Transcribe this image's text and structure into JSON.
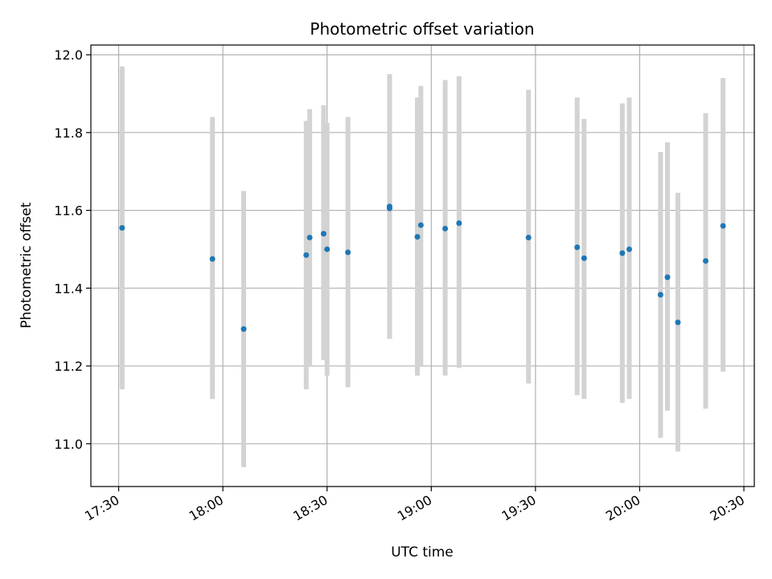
{
  "chart_data": {
    "type": "scatter",
    "title": "Photometric offset variation",
    "xlabel": "UTC time",
    "ylabel": "Photometric offset",
    "x_ticks": [
      "17:30",
      "18:00",
      "18:30",
      "19:00",
      "19:30",
      "20:00",
      "20:30"
    ],
    "x_tick_minutes": [
      1050,
      1080,
      1110,
      1140,
      1170,
      1200,
      1230
    ],
    "y_ticks": [
      "11.0",
      "11.2",
      "11.4",
      "11.6",
      "11.8",
      "12.0"
    ],
    "y_tick_values": [
      11.0,
      11.2,
      11.4,
      11.6,
      11.8,
      12.0
    ],
    "xlim": [
      "17:22",
      "20:33"
    ],
    "ylim": [
      10.89,
      12.025
    ],
    "grid": true,
    "colors": {
      "points": "#1f77b4",
      "error_bars": "#d3d3d3",
      "grid": "#b0b0b0"
    },
    "series": [
      {
        "points": [
          {
            "x": "17:31",
            "y": 11.555,
            "ylow": 11.14,
            "yhigh": 11.97
          },
          {
            "x": "17:57",
            "y": 11.475,
            "ylow": 11.115,
            "yhigh": 11.84
          },
          {
            "x": "18:06",
            "y": 11.295,
            "ylow": 10.94,
            "yhigh": 11.65
          },
          {
            "x": "18:24",
            "y": 11.485,
            "ylow": 11.14,
            "yhigh": 11.83
          },
          {
            "x": "18:25",
            "y": 11.53,
            "ylow": 11.2,
            "yhigh": 11.86
          },
          {
            "x": "18:29",
            "y": 11.54,
            "ylow": 11.215,
            "yhigh": 11.87
          },
          {
            "x": "18:30",
            "y": 11.5,
            "ylow": 11.175,
            "yhigh": 11.825
          },
          {
            "x": "18:36",
            "y": 11.492,
            "ylow": 11.145,
            "yhigh": 11.84
          },
          {
            "x": "18:48",
            "y": 11.605,
            "ylow": 11.27,
            "yhigh": 11.95
          },
          {
            "x": "18:48",
            "y": 11.61,
            "ylow": 11.27,
            "yhigh": 11.95
          },
          {
            "x": "18:56",
            "y": 11.532,
            "ylow": 11.175,
            "yhigh": 11.89
          },
          {
            "x": "18:57",
            "y": 11.562,
            "ylow": 11.2,
            "yhigh": 11.92
          },
          {
            "x": "19:04",
            "y": 11.553,
            "ylow": 11.175,
            "yhigh": 11.935
          },
          {
            "x": "19:08",
            "y": 11.567,
            "ylow": 11.195,
            "yhigh": 11.945
          },
          {
            "x": "19:28",
            "y": 11.53,
            "ylow": 11.155,
            "yhigh": 11.91
          },
          {
            "x": "19:42",
            "y": 11.505,
            "ylow": 11.125,
            "yhigh": 11.89
          },
          {
            "x": "19:44",
            "y": 11.477,
            "ylow": 11.115,
            "yhigh": 11.835
          },
          {
            "x": "19:55",
            "y": 11.49,
            "ylow": 11.105,
            "yhigh": 11.875
          },
          {
            "x": "19:57",
            "y": 11.5,
            "ylow": 11.115,
            "yhigh": 11.89
          },
          {
            "x": "20:06",
            "y": 11.383,
            "ylow": 11.015,
            "yhigh": 11.75
          },
          {
            "x": "20:08",
            "y": 11.428,
            "ylow": 11.085,
            "yhigh": 11.775
          },
          {
            "x": "20:11",
            "y": 11.312,
            "ylow": 10.98,
            "yhigh": 11.645
          },
          {
            "x": "20:19",
            "y": 11.47,
            "ylow": 11.09,
            "yhigh": 11.85
          },
          {
            "x": "20:24",
            "y": 11.56,
            "ylow": 11.185,
            "yhigh": 11.94
          }
        ]
      }
    ]
  }
}
